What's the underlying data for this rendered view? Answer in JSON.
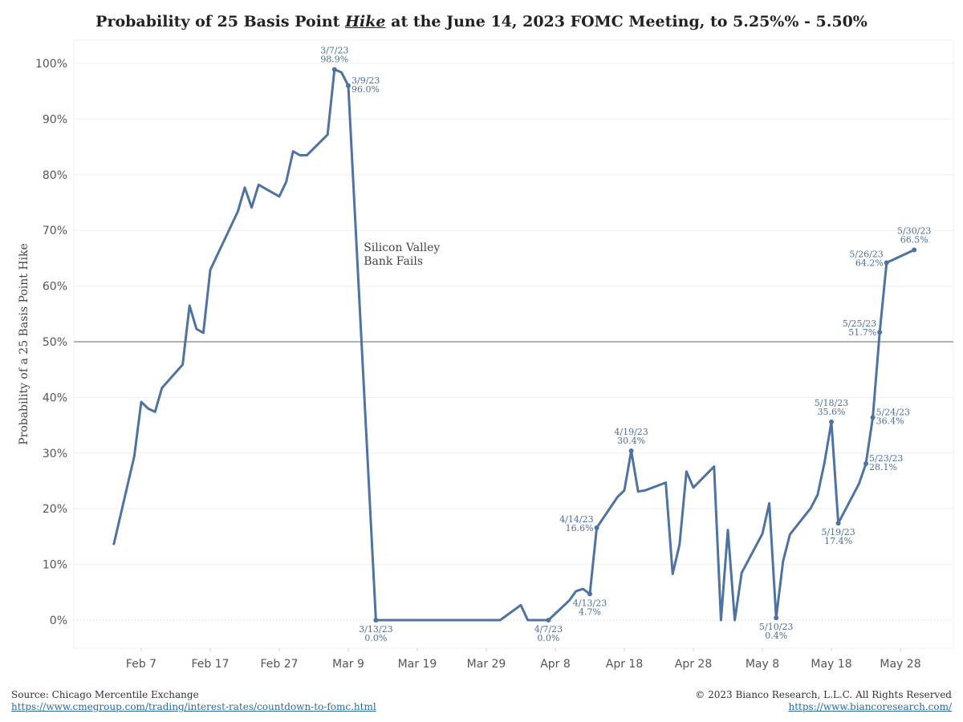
{
  "title": {
    "before": "Probability of 25 Basis Point ",
    "emph": "Hike",
    "after": " at the June 14, 2023 FOMC Meeting, to 5.25%% - 5.50%"
  },
  "footer": {
    "source": "Source: Chicago Mercentile Exchange",
    "source_url": "https://www.cmegroup.com/trading/interest-rates/countdown-to-fomc.html",
    "copyright": "© 2023 Bianco Research, L.L.C. All Rights Reserved",
    "site_url": "https://www.biancoresearch.com/"
  },
  "colors": {
    "line": "#4e73a0",
    "reference": "#999999",
    "grid": "#eeeeee"
  },
  "chart_data": {
    "type": "line",
    "ylabel": "Probability of a 25 Basis Point Hike",
    "ylim": [
      0,
      100
    ],
    "yticks": [
      "0%",
      "10%",
      "20%",
      "30%",
      "40%",
      "50%",
      "60%",
      "70%",
      "80%",
      "90%",
      "100%"
    ],
    "xticks": [
      "Feb 7",
      "Feb 17",
      "Feb 27",
      "Mar 9",
      "Mar 19",
      "Mar 29",
      "Apr 8",
      "Apr 18",
      "Apr 28",
      "May 8",
      "May 18",
      "May 28"
    ],
    "reference_line": 50,
    "note": [
      "Silicon Valley",
      "Bank Fails"
    ],
    "series": [
      {
        "points": [
          [
            "2023-02-03",
            13.5
          ],
          [
            "2023-02-06",
            29.5
          ],
          [
            "2023-02-07",
            39.2
          ],
          [
            "2023-02-08",
            38.0
          ],
          [
            "2023-02-09",
            37.4
          ],
          [
            "2023-02-10",
            41.7
          ],
          [
            "2023-02-13",
            45.9
          ],
          [
            "2023-02-14",
            56.5
          ],
          [
            "2023-02-15",
            52.3
          ],
          [
            "2023-02-16",
            51.6
          ],
          [
            "2023-02-17",
            62.9
          ],
          [
            "2023-02-21",
            73.4
          ],
          [
            "2023-02-22",
            77.7
          ],
          [
            "2023-02-23",
            74.1
          ],
          [
            "2023-02-24",
            78.2
          ],
          [
            "2023-02-27",
            76.1
          ],
          [
            "2023-02-28",
            78.7
          ],
          [
            "2023-03-01",
            84.2
          ],
          [
            "2023-03-02",
            83.5
          ],
          [
            "2023-03-03",
            83.5
          ],
          [
            "2023-03-06",
            87.2
          ],
          [
            "2023-03-07",
            98.9
          ],
          [
            "2023-03-08",
            98.4
          ],
          [
            "2023-03-09",
            96.0
          ],
          [
            "2023-03-13",
            0.0
          ],
          [
            "2023-03-31",
            0.0
          ],
          [
            "2023-04-03",
            2.7
          ],
          [
            "2023-04-04",
            0.0
          ],
          [
            "2023-04-07",
            0.0
          ],
          [
            "2023-04-10",
            3.5
          ],
          [
            "2023-04-11",
            5.2
          ],
          [
            "2023-04-12",
            5.6
          ],
          [
            "2023-04-13",
            4.7
          ],
          [
            "2023-04-14",
            16.6
          ],
          [
            "2023-04-17",
            22.1
          ],
          [
            "2023-04-18",
            23.3
          ],
          [
            "2023-04-19",
            30.4
          ],
          [
            "2023-04-20",
            23.1
          ],
          [
            "2023-04-21",
            23.3
          ],
          [
            "2023-04-24",
            24.7
          ],
          [
            "2023-04-25",
            8.3
          ],
          [
            "2023-04-26",
            13.6
          ],
          [
            "2023-04-27",
            26.7
          ],
          [
            "2023-04-28",
            23.8
          ],
          [
            "2023-05-01",
            27.6
          ],
          [
            "2023-05-02",
            0.0
          ],
          [
            "2023-05-03",
            16.2
          ],
          [
            "2023-05-04",
            0.0
          ],
          [
            "2023-05-05",
            8.5
          ],
          [
            "2023-05-08",
            15.5
          ],
          [
            "2023-05-09",
            21.0
          ],
          [
            "2023-05-10",
            0.4
          ],
          [
            "2023-05-11",
            10.6
          ],
          [
            "2023-05-12",
            15.4
          ],
          [
            "2023-05-15",
            20.1
          ],
          [
            "2023-05-16",
            22.5
          ],
          [
            "2023-05-17",
            28.3
          ],
          [
            "2023-05-18",
            35.6
          ],
          [
            "2023-05-19",
            17.4
          ],
          [
            "2023-05-22",
            24.5
          ],
          [
            "2023-05-23",
            28.1
          ],
          [
            "2023-05-24",
            36.4
          ],
          [
            "2023-05-25",
            51.7
          ],
          [
            "2023-05-26",
            64.2
          ],
          [
            "2023-05-30",
            66.5
          ]
        ]
      }
    ],
    "annotations": [
      {
        "date": "2023-03-07",
        "value": 98.9,
        "label": [
          "3/7/23",
          "98.9%"
        ],
        "pos": "above"
      },
      {
        "date": "2023-03-09",
        "value": 96.0,
        "label": [
          "3/9/23",
          "96.0%"
        ],
        "pos": "right"
      },
      {
        "date": "2023-03-13",
        "value": 0.0,
        "label": [
          "3/13/23",
          "0.0%"
        ],
        "pos": "below"
      },
      {
        "date": "2023-04-07",
        "value": 0.0,
        "label": [
          "4/7/23",
          "0.0%"
        ],
        "pos": "below"
      },
      {
        "date": "2023-04-13",
        "value": 4.7,
        "label": [
          "4/13/23",
          "4.7%"
        ],
        "pos": "below"
      },
      {
        "date": "2023-04-14",
        "value": 16.6,
        "label": [
          "4/14/23",
          "16.6%"
        ],
        "pos": "left"
      },
      {
        "date": "2023-04-19",
        "value": 30.4,
        "label": [
          "4/19/23",
          "30.4%"
        ],
        "pos": "above"
      },
      {
        "date": "2023-05-10",
        "value": 0.4,
        "label": [
          "5/10/23",
          "0.4%"
        ],
        "pos": "below"
      },
      {
        "date": "2023-05-18",
        "value": 35.6,
        "label": [
          "5/18/23",
          "35.6%"
        ],
        "pos": "above"
      },
      {
        "date": "2023-05-19",
        "value": 17.4,
        "label": [
          "5/19/23",
          "17.4%"
        ],
        "pos": "below"
      },
      {
        "date": "2023-05-23",
        "value": 28.1,
        "label": [
          "5/23/23",
          "28.1%"
        ],
        "pos": "right"
      },
      {
        "date": "2023-05-24",
        "value": 36.4,
        "label": [
          "5/24/23",
          "36.4%"
        ],
        "pos": "right"
      },
      {
        "date": "2023-05-25",
        "value": 51.7,
        "label": [
          "5/25/23",
          "51.7%"
        ],
        "pos": "left"
      },
      {
        "date": "2023-05-26",
        "value": 64.2,
        "label": [
          "5/26/23",
          "64.2%"
        ],
        "pos": "left"
      },
      {
        "date": "2023-05-30",
        "value": 66.5,
        "label": [
          "5/30/23",
          "66.5%"
        ],
        "pos": "above"
      }
    ]
  }
}
